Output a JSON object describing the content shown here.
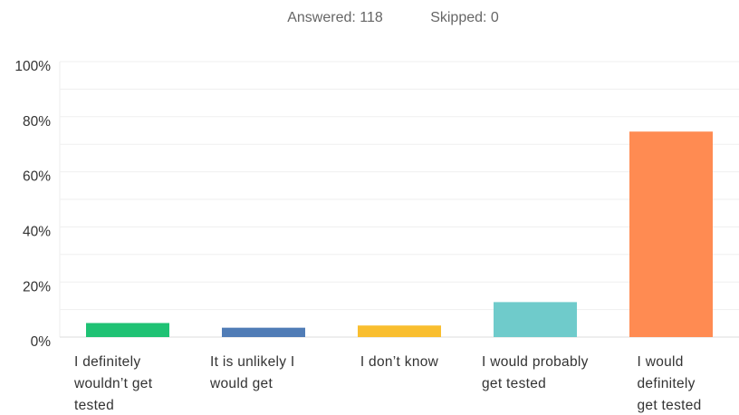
{
  "header": {
    "answered": "Answered: 118",
    "skipped": "Skipped: 0"
  },
  "chart_data": {
    "type": "bar",
    "categories": [
      "I definitely wouldn’t get tested",
      "It is unlikely I would get",
      "I don’t know",
      "I would probably get tested",
      "I would definitely get tested"
    ],
    "values": [
      5.1,
      3.4,
      4.2,
      12.7,
      74.6
    ],
    "colors": [
      "#1fc274",
      "#507cb6",
      "#f9be2f",
      "#6fcbcb",
      "#ff8b52"
    ],
    "ylim": [
      0,
      100
    ],
    "yticks": [
      {
        "value": 0,
        "label": "0%"
      },
      {
        "value": 20,
        "label": "20%"
      },
      {
        "value": 40,
        "label": "40%"
      },
      {
        "value": 60,
        "label": "60%"
      },
      {
        "value": 80,
        "label": "80%"
      },
      {
        "value": 100,
        "label": "100%"
      }
    ],
    "minor_grid": [
      10,
      30,
      50,
      70,
      90
    ],
    "grid": true
  }
}
